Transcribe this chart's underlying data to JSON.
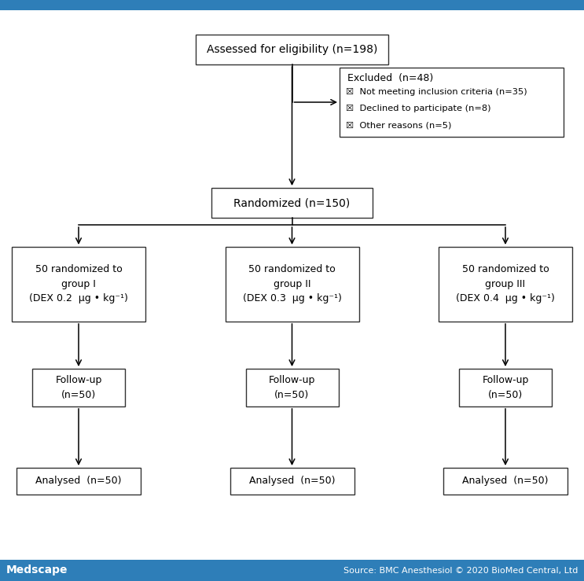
{
  "bg_color": "#ffffff",
  "header_bg": "#2e7eb8",
  "header_text_left": "Medscape",
  "header_text_right": "Source: BMC Anesthesiol © 2020 BioMed Central, Ltd",
  "box1_text": "Assessed for eligibility (n=198)",
  "box2_text": "Randomized (n=150)",
  "excluded_title": "Excluded  (n=48)",
  "excluded_lines": [
    "☒  Not meeting inclusion criteria (n=35)",
    "☒  Declined to participate (n=8)",
    "☒  Other reasons (n=5)"
  ],
  "group_boxes": [
    "50 randomized to\ngroup I\n(DEX 0.2  μg • kg⁻¹)",
    "50 randomized to\ngroup II\n(DEX 0.3  μg • kg⁻¹)",
    "50 randomized to\ngroup III\n(DEX 0.4  μg • kg⁻¹)"
  ],
  "followup_boxes": [
    "Follow-up\n(n=50)",
    "Follow-up\n(n=50)",
    "Follow-up\n(n=50)"
  ],
  "analysed_boxes": [
    "Analysed  (n=50)",
    "Analysed  (n=50)",
    "Analysed  (n=50)"
  ],
  "fig_w": 7.43,
  "fig_h": 7.39,
  "dpi": 100
}
